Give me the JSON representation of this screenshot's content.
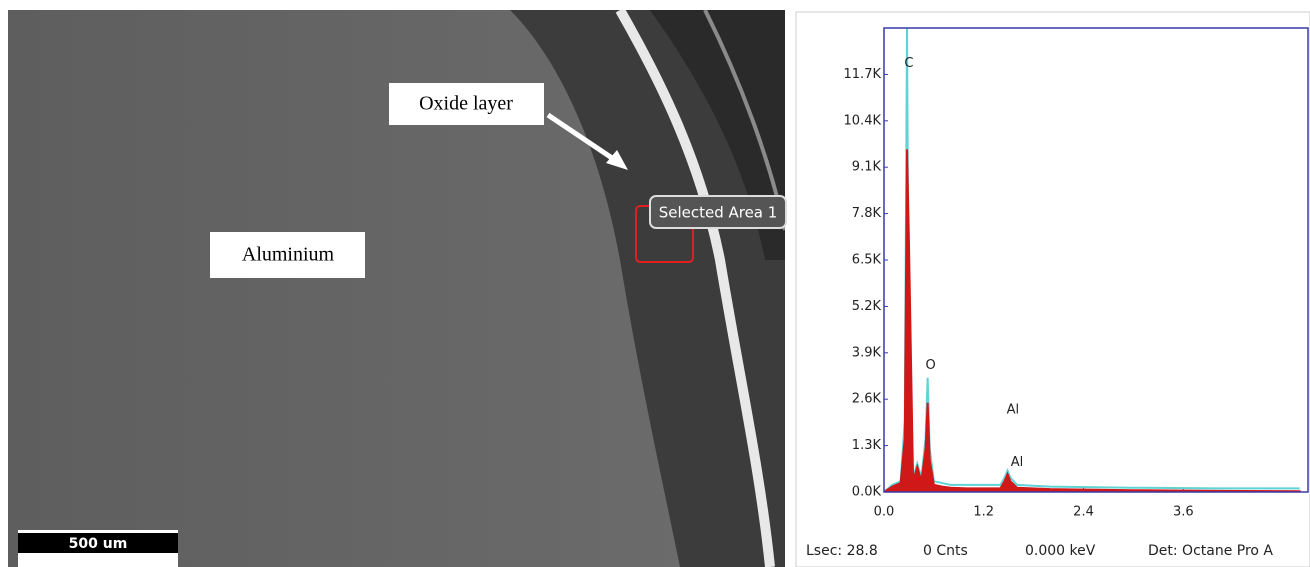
{
  "image": {
    "label_oxide": "Oxide layer",
    "label_metal": "Aluminium",
    "selection": "Selected Area 1",
    "scale_bar": "500 um"
  },
  "chart_data": {
    "type": "line",
    "x": [
      0,
      0.1,
      0.2,
      0.25,
      0.277,
      0.3,
      0.35,
      0.4,
      0.45,
      0.5,
      0.525,
      0.55,
      0.6,
      0.7,
      0.8,
      1.0,
      1.2,
      1.4,
      1.45,
      1.486,
      1.52,
      1.6,
      2.0,
      3.0,
      4.0,
      5.0
    ],
    "series": [
      {
        "color": "#5fd3d6",
        "values": [
          0,
          200,
          300,
          2000,
          13000,
          3000,
          400,
          800,
          400,
          1500,
          3200,
          1200,
          300,
          250,
          200,
          200,
          200,
          200,
          400,
          600,
          400,
          200,
          150,
          120,
          100,
          100
        ]
      },
      {
        "color": "#d01818",
        "fill": true,
        "values": [
          0,
          150,
          250,
          1500,
          9600,
          7000,
          300,
          700,
          300,
          1200,
          2500,
          900,
          200,
          150,
          120,
          100,
          100,
          100,
          300,
          500,
          300,
          120,
          80,
          50,
          30,
          20
        ]
      }
    ],
    "annotations": [
      {
        "text": "C",
        "x": 0.3,
        "y": 12000
      },
      {
        "text": "O",
        "x": 0.56,
        "y": 3550
      },
      {
        "text": "Al",
        "x": 1.55,
        "y": 2300
      },
      {
        "text": "Al",
        "x": 1.6,
        "y": 820
      }
    ],
    "xlim": [
      0,
      5.1
    ],
    "ylim": [
      0,
      13000
    ],
    "xticks": [
      {
        "value": 0,
        "label": "0.0"
      },
      1.2,
      2.4,
      3.6
    ],
    "yticks": [
      {
        "value": 0,
        "label": "0.0K"
      },
      {
        "value": 1300,
        "label": "1.3K"
      },
      {
        "value": 2600,
        "label": "2.6K"
      },
      {
        "value": 3900,
        "label": "3.9K"
      },
      {
        "value": 5200,
        "label": "5.2K"
      },
      {
        "value": 6500,
        "label": "6.5K"
      },
      {
        "value": 7800,
        "label": "7.8K"
      },
      {
        "value": 9100,
        "label": "9.1K"
      },
      {
        "value": 10400,
        "label": "10.4K"
      },
      {
        "value": 11700,
        "label": "11.7K"
      }
    ],
    "frame_color": "#3a3aa8"
  },
  "status_bar": [
    "Lsec: 28.8",
    "0 Cnts",
    "0.000 keV",
    "Det: Octane Pro A"
  ]
}
